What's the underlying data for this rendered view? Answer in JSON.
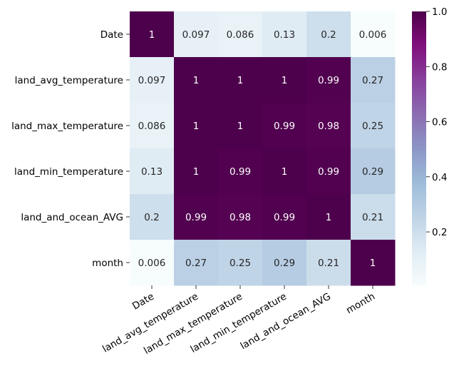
{
  "chart_data": {
    "type": "heatmap",
    "title": "",
    "xlabel": "",
    "ylabel": "",
    "row_labels": [
      "Date",
      "land_avg_temperature",
      "land_max_temperature",
      "land_min_temperature",
      "land_and_ocean_AVG",
      "month"
    ],
    "col_labels": [
      "Date",
      "land_avg_temperature",
      "land_max_temperature",
      "land_min_temperature",
      "land_and_ocean_AVG",
      "month"
    ],
    "values": [
      [
        1,
        0.097,
        0.086,
        0.13,
        0.2,
        0.006
      ],
      [
        0.097,
        1,
        1,
        1,
        0.99,
        0.27
      ],
      [
        0.086,
        1,
        1,
        0.99,
        0.98,
        0.25
      ],
      [
        0.13,
        1,
        0.99,
        1,
        0.99,
        0.29
      ],
      [
        0.2,
        0.99,
        0.98,
        0.99,
        1,
        0.21
      ],
      [
        0.006,
        0.27,
        0.25,
        0.29,
        0.21,
        1
      ]
    ],
    "value_labels": [
      [
        "1",
        "0.097",
        "0.086",
        "0.13",
        "0.2",
        "0.006"
      ],
      [
        "0.097",
        "1",
        "1",
        "1",
        "0.99",
        "0.27"
      ],
      [
        "0.086",
        "1",
        "1",
        "0.99",
        "0.98",
        "0.25"
      ],
      [
        "0.13",
        "1",
        "0.99",
        "1",
        "0.99",
        "0.29"
      ],
      [
        "0.2",
        "0.99",
        "0.98",
        "0.99",
        "1",
        "0.21"
      ],
      [
        "0.006",
        "0.27",
        "0.25",
        "0.29",
        "0.21",
        "1"
      ]
    ],
    "colormap": "BuPu",
    "colormap_stops": [
      "#f7fcfd",
      "#e0ecf4",
      "#bfd3e6",
      "#9ebcda",
      "#8c96c6",
      "#8c6bb1",
      "#88419d",
      "#810f7c",
      "#4d004b"
    ],
    "color_range": [
      0.006,
      1
    ],
    "colorbar_ticks": [
      0.2,
      0.4,
      0.6,
      0.8,
      1.0
    ],
    "colorbar_tick_labels": [
      "0.2",
      "0.4",
      "0.6",
      "0.8",
      "1.0"
    ],
    "x_tick_rotation": 30
  }
}
